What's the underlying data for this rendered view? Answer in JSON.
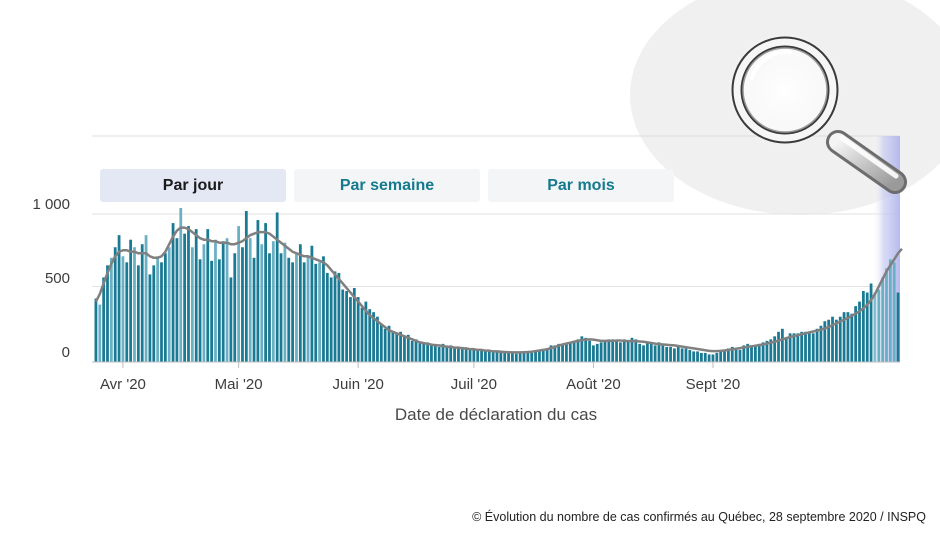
{
  "tabs": [
    {
      "label": "Par jour",
      "active": true
    },
    {
      "label": "Par semaine",
      "active": false
    },
    {
      "label": "Par mois",
      "active": false
    }
  ],
  "footer": "© Évolution du nombre de cas confirmés au Québec, 28 septembre 2020 / INSPQ",
  "icons": {
    "magnifier": "magnifier-icon"
  },
  "colors": {
    "bar": "#1a7a94",
    "bar_highlight": "#6ab0c4",
    "line": "#808080",
    "active_tab": "#e4e8f5",
    "tab_text": "#157a8e"
  },
  "chart_data": {
    "type": "bar",
    "xlabel": "Date de déclaration du cas",
    "ylabel": "",
    "ylim": [
      0,
      1100
    ],
    "yticks": [
      {
        "value": 0,
        "label": "0"
      },
      {
        "value": 500,
        "label": "500"
      },
      {
        "value": 1000,
        "label": "1 000"
      }
    ],
    "x_ticks": [
      {
        "date": "2020-04-01",
        "label": "Avr '20"
      },
      {
        "date": "2020-05-01",
        "label": "Mai '20"
      },
      {
        "date": "2020-06-01",
        "label": "Juin '20"
      },
      {
        "date": "2020-07-01",
        "label": "Juil '20"
      },
      {
        "date": "2020-08-01",
        "label": "Août '20"
      },
      {
        "date": "2020-09-01",
        "label": "Sept '20"
      }
    ],
    "start_date": "2020-03-25",
    "daily_cases": [
      420,
      380,
      560,
      640,
      690,
      760,
      840,
      700,
      660,
      810,
      760,
      640,
      780,
      840,
      580,
      640,
      700,
      660,
      720,
      760,
      920,
      820,
      1020,
      850,
      900,
      760,
      880,
      680,
      780,
      880,
      670,
      810,
      680,
      800,
      820,
      560,
      720,
      900,
      760,
      1000,
      820,
      690,
      940,
      780,
      920,
      720,
      800,
      990,
      720,
      790,
      690,
      660,
      720,
      780,
      660,
      700,
      770,
      650,
      660,
      700,
      590,
      560,
      600,
      590,
      480,
      470,
      430,
      490,
      430,
      360,
      400,
      350,
      330,
      300,
      250,
      220,
      240,
      200,
      190,
      200,
      170,
      180,
      140,
      150,
      130,
      120,
      130,
      110,
      120,
      100,
      120,
      110,
      110,
      100,
      100,
      100,
      90,
      90,
      80,
      85,
      85,
      70,
      75,
      70,
      70,
      65,
      60,
      70,
      60,
      55,
      65,
      65,
      60,
      60,
      70,
      80,
      80,
      90,
      110,
      110,
      120,
      110,
      120,
      130,
      140,
      150,
      170,
      160,
      140,
      110,
      120,
      130,
      140,
      150,
      150,
      140,
      130,
      150,
      140,
      160,
      150,
      120,
      110,
      130,
      120,
      110,
      130,
      110,
      100,
      100,
      90,
      100,
      90,
      90,
      80,
      70,
      70,
      60,
      60,
      50,
      50,
      60,
      70,
      80,
      90,
      100,
      80,
      80,
      110,
      120,
      110,
      110,
      120,
      130,
      140,
      150,
      170,
      200,
      220,
      160,
      190,
      190,
      190,
      200,
      200,
      190,
      190,
      220,
      240,
      270,
      280,
      300,
      280,
      300,
      330,
      330,
      320,
      370,
      400,
      470,
      460,
      520,
      460,
      480,
      560,
      620,
      680,
      660,
      460
    ],
    "moving_average": [
      400,
      450,
      520,
      590,
      650,
      700,
      730,
      740,
      740,
      730,
      730,
      720,
      720,
      720,
      700,
      690,
      690,
      700,
      730,
      780,
      830,
      870,
      890,
      890,
      880,
      860,
      840,
      820,
      810,
      810,
      800,
      800,
      790,
      790,
      790,
      780,
      780,
      790,
      800,
      820,
      840,
      850,
      860,
      860,
      860,
      850,
      830,
      810,
      790,
      770,
      750,
      730,
      720,
      710,
      700,
      700,
      690,
      680,
      670,
      660,
      640,
      610,
      580,
      550,
      520,
      490,
      460,
      430,
      400,
      370,
      340,
      310,
      290,
      270,
      250,
      230,
      210,
      200,
      190,
      180,
      170,
      160,
      150,
      140,
      130,
      125,
      120,
      115,
      110,
      110,
      105,
      100,
      100,
      95,
      95,
      90,
      90,
      85,
      85,
      80,
      80,
      75,
      75,
      70,
      70,
      68,
      66,
      65,
      64,
      64,
      64,
      65,
      66,
      68,
      72,
      76,
      80,
      85,
      92,
      100,
      108,
      116,
      122,
      128,
      134,
      140,
      145,
      148,
      150,
      148,
      144,
      140,
      140,
      140,
      140,
      142,
      142,
      140,
      138,
      138,
      138,
      136,
      134,
      130,
      126,
      122,
      118,
      116,
      114,
      112,
      110,
      106,
      102,
      98,
      94,
      90,
      86,
      82,
      78,
      74,
      72,
      72,
      74,
      76,
      80,
      84,
      88,
      92,
      96,
      100,
      104,
      108,
      112,
      116,
      122,
      128,
      134,
      142,
      150,
      158,
      166,
      172,
      178,
      184,
      190,
      196,
      202,
      208,
      214,
      222,
      232,
      244,
      256,
      268,
      280,
      292,
      306,
      320,
      336,
      356,
      380,
      410,
      450,
      500,
      550,
      600,
      640,
      680,
      720,
      750
    ]
  }
}
